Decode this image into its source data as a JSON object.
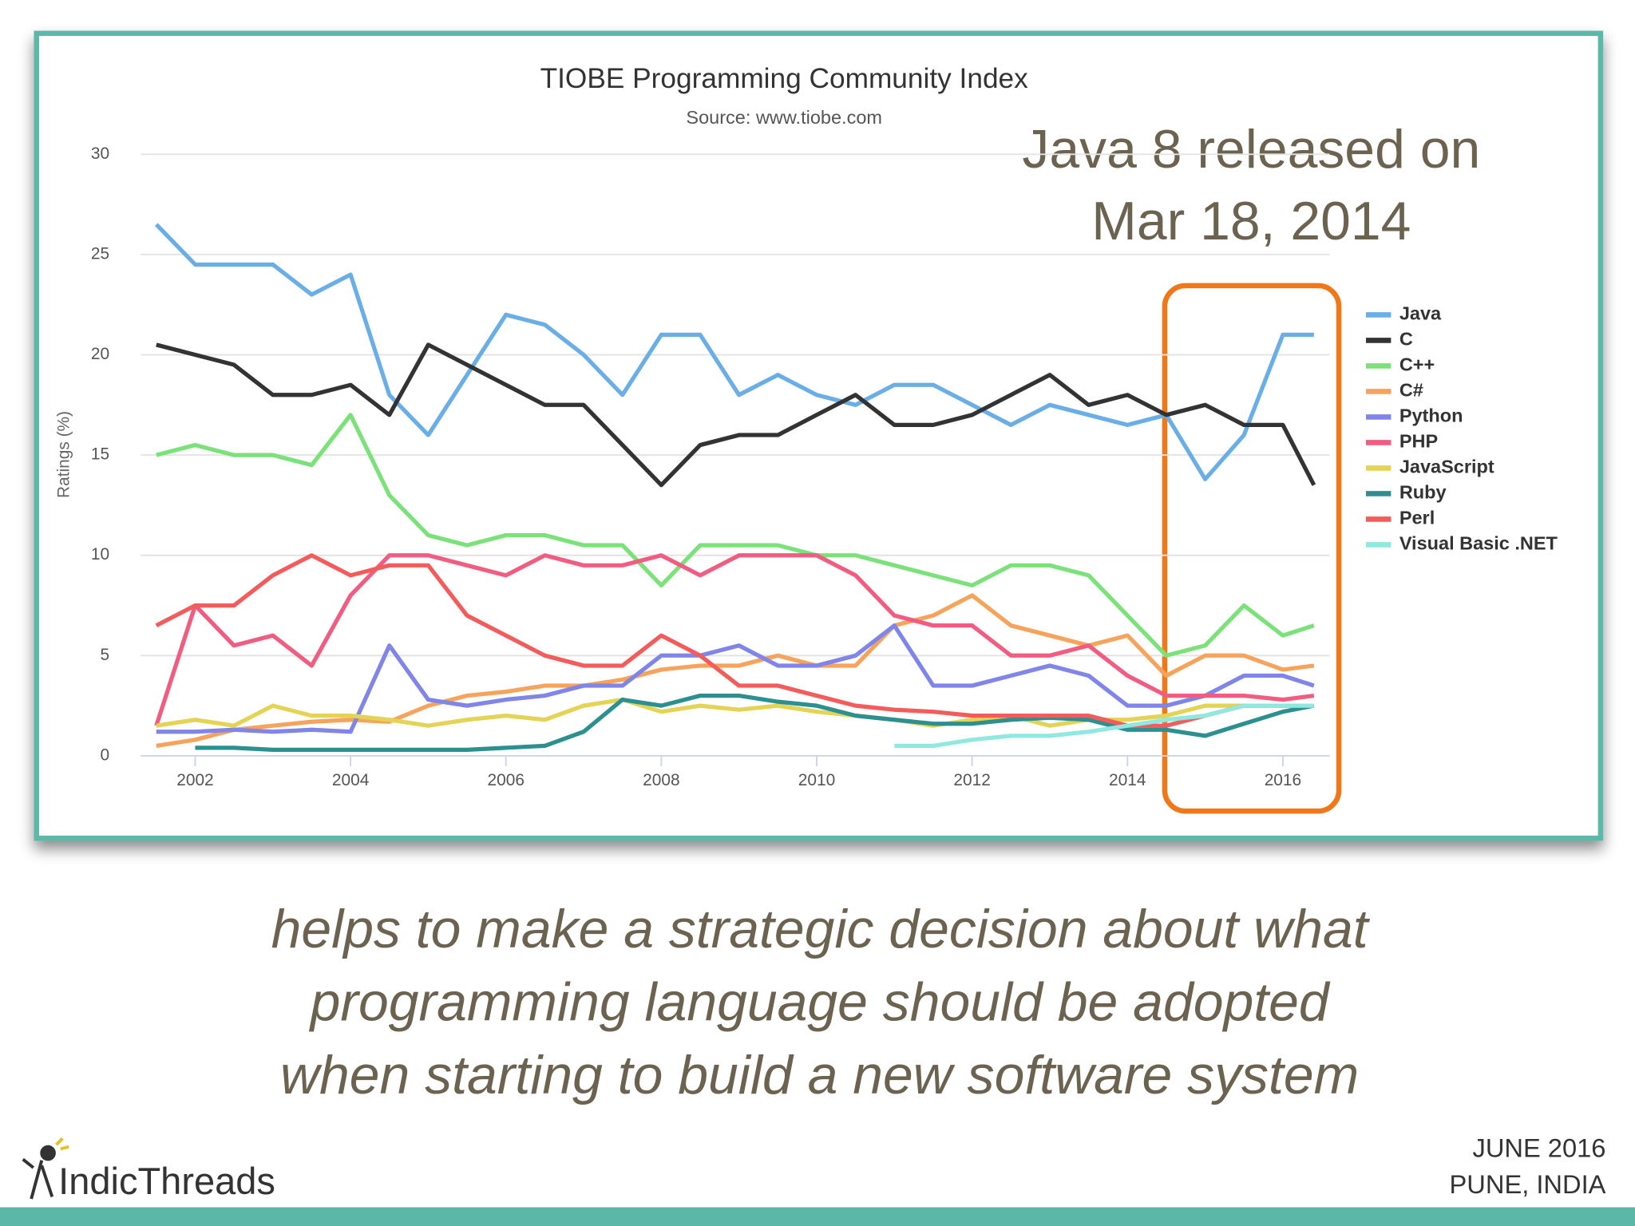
{
  "chart_data": {
    "type": "line",
    "title": "TIOBE Programming Community Index",
    "subtitle": "Source: www.tiobe.com",
    "y_label": "Ratings (%)",
    "annotation": [
      "Java 8 released on",
      "Mar 18, 2014"
    ],
    "x": [
      2001.5,
      2002,
      2002.5,
      2003,
      2003.5,
      2004,
      2004.5,
      2005,
      2005.5,
      2006,
      2006.5,
      2007,
      2007.5,
      2008,
      2008.5,
      2009,
      2009.5,
      2010,
      2010.5,
      2011,
      2011.5,
      2012,
      2012.5,
      2013,
      2013.5,
      2014,
      2014.5,
      2015,
      2015.5,
      2016,
      2016.4
    ],
    "xlim": [
      2001.3,
      2016.6
    ],
    "xticks": [
      2002,
      2004,
      2006,
      2008,
      2010,
      2012,
      2014,
      2016
    ],
    "ylim": [
      0,
      30
    ],
    "yticks": [
      0,
      5,
      10,
      15,
      20,
      25,
      30
    ],
    "grid": true,
    "legend": "right",
    "series": [
      {
        "name": "Java",
        "color": "#6aaee8",
        "values": [
          26.5,
          24.5,
          24.5,
          24.5,
          23,
          24,
          18,
          16,
          19,
          22,
          21.5,
          20,
          18,
          21,
          21,
          18,
          19,
          18,
          17.5,
          18.5,
          18.5,
          17.5,
          16.5,
          17.5,
          17,
          16.5,
          17,
          13.8,
          16,
          21,
          21
        ]
      },
      {
        "name": "C",
        "color": "#333333",
        "values": [
          20.5,
          20,
          19.5,
          18,
          18,
          18.5,
          17,
          20.5,
          19.5,
          18.5,
          17.5,
          17.5,
          15.5,
          13.5,
          15.5,
          16,
          16,
          17,
          18,
          16.5,
          16.5,
          17,
          18,
          19,
          17.5,
          18,
          17,
          17.5,
          16.5,
          16.5,
          13.5
        ]
      },
      {
        "name": "C++",
        "color": "#7be27a",
        "values": [
          15,
          15.5,
          15,
          15,
          14.5,
          17,
          13,
          11,
          10.5,
          11,
          11,
          10.5,
          10.5,
          8.5,
          10.5,
          10.5,
          10.5,
          10,
          10,
          9.5,
          9,
          8.5,
          9.5,
          9.5,
          9,
          7,
          5,
          5.5,
          7.5,
          6,
          6.5
        ]
      },
      {
        "name": "C#",
        "color": "#f7a35c",
        "values": [
          0.5,
          0.8,
          1.3,
          1.5,
          1.7,
          1.8,
          1.7,
          2.5,
          3,
          3.2,
          3.5,
          3.5,
          3.8,
          4.3,
          4.5,
          4.5,
          5,
          4.5,
          4.5,
          6.5,
          7,
          8,
          6.5,
          6,
          5.5,
          6,
          4,
          5,
          5,
          4.3,
          4.5
        ]
      },
      {
        "name": "Python",
        "color": "#8085e9",
        "values": [
          1.2,
          1.2,
          1.3,
          1.2,
          1.3,
          1.2,
          5.5,
          2.8,
          2.5,
          2.8,
          3,
          3.5,
          3.5,
          5,
          5,
          5.5,
          4.5,
          4.5,
          5,
          6.5,
          3.5,
          3.5,
          4,
          4.5,
          4,
          2.5,
          2.5,
          3,
          4,
          4,
          3.5
        ]
      },
      {
        "name": "PHP",
        "color": "#f15c80",
        "values": [
          1.5,
          7.5,
          5.5,
          6,
          4.5,
          8,
          10,
          10,
          9.5,
          9,
          10,
          9.5,
          9.5,
          10,
          9,
          10,
          10,
          10,
          9,
          7,
          6.5,
          6.5,
          5,
          5,
          5.5,
          4,
          3,
          3,
          3,
          2.8,
          3
        ]
      },
      {
        "name": "JavaScript",
        "color": "#e4d354",
        "values": [
          1.5,
          1.8,
          1.5,
          2.5,
          2,
          2,
          1.8,
          1.5,
          1.8,
          2,
          1.8,
          2.5,
          2.8,
          2.2,
          2.5,
          2.3,
          2.5,
          2.2,
          2,
          1.8,
          1.5,
          1.8,
          2,
          1.5,
          1.8,
          1.8,
          2,
          2.5,
          2.5,
          2.5,
          2.5
        ]
      },
      {
        "name": "Ruby",
        "color": "#2b908f",
        "values": [
          null,
          0.4,
          0.4,
          0.3,
          0.3,
          0.3,
          0.3,
          0.3,
          0.3,
          0.4,
          0.5,
          1.2,
          2.8,
          2.5,
          3,
          3,
          2.7,
          2.5,
          2,
          1.8,
          1.6,
          1.6,
          1.8,
          1.9,
          1.8,
          1.3,
          1.3,
          1,
          1.6,
          2.2,
          2.5
        ]
      },
      {
        "name": "Perl",
        "color": "#f45b5b",
        "values": [
          6.5,
          7.5,
          7.5,
          9,
          10,
          9,
          9.5,
          9.5,
          7,
          6,
          5,
          4.5,
          4.5,
          6,
          5,
          3.5,
          3.5,
          3,
          2.5,
          2.3,
          2.2,
          2,
          2,
          2,
          2,
          1.5,
          1.5,
          2,
          2.5,
          2.5,
          2.5
        ]
      },
      {
        "name": "Visual Basic .NET",
        "color": "#91e8e1",
        "values": [
          null,
          null,
          null,
          null,
          null,
          null,
          null,
          null,
          null,
          null,
          null,
          null,
          null,
          null,
          null,
          null,
          null,
          null,
          null,
          0.5,
          0.5,
          0.8,
          1,
          1,
          1.2,
          1.5,
          1.8,
          2,
          2.5,
          2.5,
          2.5
        ]
      }
    ]
  },
  "slide": {
    "caption": [
      "helps to make a strategic decision about what",
      "programming language should be adopted",
      "when starting to build a new software system"
    ],
    "logo": "IndicThreads",
    "date": "JUNE 2016",
    "place": "PUNE, INDIA"
  }
}
